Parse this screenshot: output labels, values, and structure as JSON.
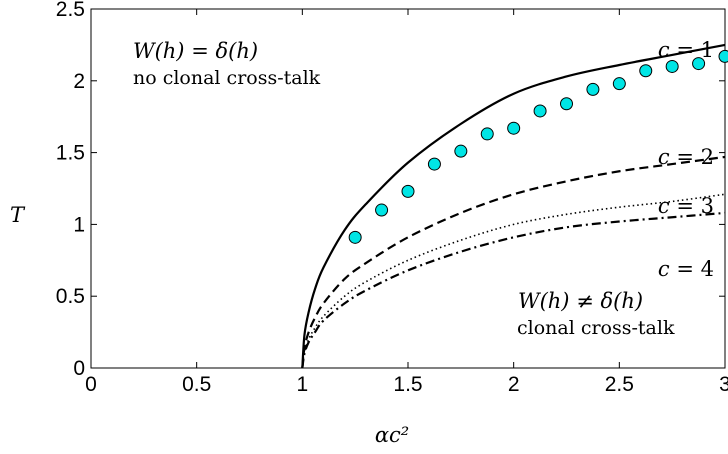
{
  "chart_data": {
    "type": "line",
    "xlabel": "αc²",
    "ylabel": "T",
    "xlim": [
      0,
      3
    ],
    "ylim": [
      0,
      2.5
    ],
    "xticks": [
      0,
      0.5,
      1,
      1.5,
      2,
      2.5,
      3
    ],
    "yticks": [
      0,
      0.5,
      1,
      1.5,
      2,
      2.5
    ],
    "xtick_labels": [
      "0",
      "0.5",
      "1",
      "1.5",
      "2",
      "2.5",
      "3"
    ],
    "ytick_labels": [
      "0",
      "0.5",
      "1",
      "1.5",
      "2",
      "2.5"
    ],
    "grid": false,
    "series": [
      {
        "name": "c = 1",
        "style": "solid",
        "color": "#000000",
        "x": [
          1.0,
          1.01,
          1.03,
          1.06,
          1.1,
          1.2,
          1.3,
          1.5,
          1.75,
          2.0,
          2.25,
          2.5,
          2.75,
          3.0
        ],
        "y": [
          0.0,
          0.23,
          0.39,
          0.55,
          0.7,
          0.96,
          1.14,
          1.43,
          1.7,
          1.91,
          2.03,
          2.11,
          2.18,
          2.25
        ]
      },
      {
        "name": "c = 2",
        "style": "dashed",
        "color": "#000000",
        "x": [
          1.0,
          1.01,
          1.03,
          1.06,
          1.1,
          1.2,
          1.3,
          1.5,
          1.75,
          2.0,
          2.25,
          2.5,
          2.75,
          3.0
        ],
        "y": [
          0.0,
          0.14,
          0.25,
          0.35,
          0.45,
          0.62,
          0.73,
          0.91,
          1.08,
          1.21,
          1.3,
          1.37,
          1.42,
          1.47
        ]
      },
      {
        "name": "c = 3",
        "style": "dotted",
        "color": "#000000",
        "x": [
          1.0,
          1.01,
          1.03,
          1.06,
          1.1,
          1.2,
          1.3,
          1.5,
          1.75,
          2.0,
          2.25,
          2.5,
          2.75,
          3.0
        ],
        "y": [
          0.0,
          0.11,
          0.2,
          0.28,
          0.36,
          0.5,
          0.6,
          0.75,
          0.89,
          1.0,
          1.07,
          1.12,
          1.16,
          1.21
        ]
      },
      {
        "name": "c = 4",
        "style": "dashdot",
        "color": "#000000",
        "x": [
          1.0,
          1.01,
          1.03,
          1.06,
          1.1,
          1.2,
          1.3,
          1.5,
          1.75,
          2.0,
          2.25,
          2.5,
          2.75,
          3.0
        ],
        "y": [
          0.0,
          0.1,
          0.18,
          0.25,
          0.33,
          0.45,
          0.54,
          0.68,
          0.81,
          0.91,
          0.98,
          1.02,
          1.05,
          1.08
        ]
      }
    ],
    "markers": {
      "name": "c = 1",
      "color": "#00e5e5",
      "edge_color": "#000000",
      "x": [
        1.25,
        1.375,
        1.5,
        1.625,
        1.75,
        1.875,
        2.0,
        2.125,
        2.25,
        2.375,
        2.5,
        2.625,
        2.75,
        2.875,
        3.0
      ],
      "y": [
        0.91,
        1.1,
        1.23,
        1.42,
        1.51,
        1.63,
        1.67,
        1.79,
        1.84,
        1.94,
        1.98,
        2.07,
        2.1,
        2.12,
        2.17
      ]
    },
    "curve_labels": [
      {
        "lhs": "c",
        "rhs": "1"
      },
      {
        "lhs": "c",
        "rhs": "2"
      },
      {
        "lhs": "c",
        "rhs": "3"
      },
      {
        "lhs": "c",
        "rhs": "4"
      }
    ],
    "annotations": {
      "top_left_formula": {
        "lhs": "W(h)",
        "op": "=",
        "rhs": "δ(h)"
      },
      "top_left_text": "no clonal cross-talk",
      "bottom_right_formula": {
        "lhs": "W(h)",
        "op": "≠",
        "rhs": "δ(h)"
      },
      "bottom_right_text": "clonal cross-talk"
    }
  }
}
